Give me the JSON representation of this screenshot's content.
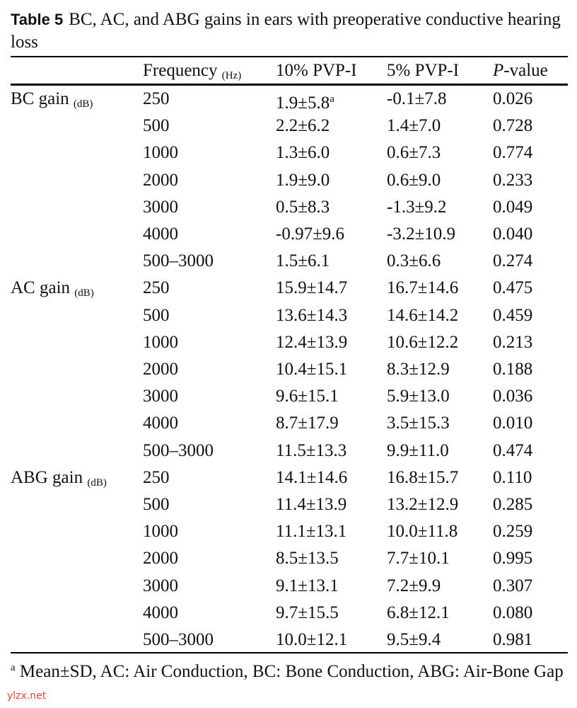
{
  "caption": {
    "label": "Table 5",
    "text": "BC, AC, and ABG gains in ears with preoperative conductive hearing loss"
  },
  "header": {
    "frequency": "Frequency",
    "frequency_unit": "(Hz)",
    "col1": "10% PVP-I",
    "col2": "5% PVP-I",
    "p_italic": "P",
    "p_rest": "-value"
  },
  "groups": [
    {
      "label": "BC gain",
      "unit": "(dB)",
      "rows": [
        [
          "250",
          "1.9±5.8",
          "-0.1±7.8",
          "0.026"
        ],
        [
          "500",
          "2.2±6.2",
          "1.4±7.0",
          "0.728"
        ],
        [
          "1000",
          "1.3±6.0",
          "0.6±7.3",
          "0.774"
        ],
        [
          "2000",
          "1.9±9.0",
          "0.6±9.0",
          "0.233"
        ],
        [
          "3000",
          "0.5±8.3",
          "-1.3±9.2",
          "0.049"
        ],
        [
          "4000",
          "-0.97±9.6",
          "-3.2±10.9",
          "0.040"
        ],
        [
          "500–3000",
          "1.5±6.1",
          "0.3±6.6",
          "0.274"
        ]
      ]
    },
    {
      "label": "AC gain",
      "unit": "(dB)",
      "rows": [
        [
          "250",
          "15.9±14.7",
          "16.7±14.6",
          "0.475"
        ],
        [
          "500",
          "13.6±14.3",
          "14.6±14.2",
          "0.459"
        ],
        [
          "1000",
          "12.4±13.9",
          "10.6±12.2",
          "0.213"
        ],
        [
          "2000",
          "10.4±15.1",
          "8.3±12.9",
          "0.188"
        ],
        [
          "3000",
          "9.6±15.1",
          "5.9±13.0",
          "0.036"
        ],
        [
          "4000",
          "8.7±17.9",
          "3.5±15.3",
          "0.010"
        ],
        [
          "500–3000",
          "11.5±13.3",
          "9.9±11.0",
          "0.474"
        ]
      ]
    },
    {
      "label": "ABG gain",
      "unit": "(dB)",
      "rows": [
        [
          "250",
          "14.1±14.6",
          "16.8±15.7",
          "0.110"
        ],
        [
          "500",
          "11.4±13.9",
          "13.2±12.9",
          "0.285"
        ],
        [
          "1000",
          "11.1±13.1",
          "10.0±11.8",
          "0.259"
        ],
        [
          "2000",
          "8.5±13.5",
          "7.7±10.1",
          "0.995"
        ],
        [
          "3000",
          "9.1±13.1",
          "7.2±9.9",
          "0.307"
        ],
        [
          "4000",
          "9.7±15.5",
          "6.8±12.1",
          "0.080"
        ],
        [
          "500–3000",
          "10.0±12.1",
          "9.5±9.4",
          "0.981"
        ]
      ]
    }
  ],
  "footnote": {
    "mark": "a",
    "text": "Mean±SD, AC: Air Conduction, BC: Bone Conduction, ABG: Air-Bone Gap"
  },
  "watermark": "ylzx.net"
}
